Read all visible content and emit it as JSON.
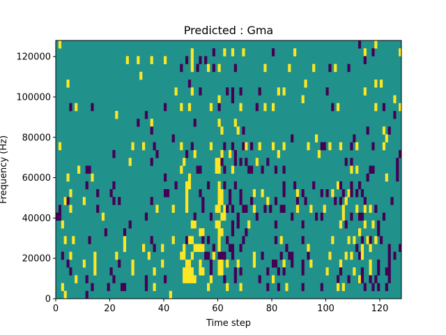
{
  "chart_data": {
    "type": "heatmap",
    "title": "Predicted : Gma",
    "xlabel": "Time step",
    "ylabel": "Frequency (Hz)",
    "xlim": [
      0,
      128
    ],
    "ylim": [
      0,
      128000
    ],
    "xticks": [
      "0",
      "20",
      "40",
      "60",
      "80",
      "100",
      "120"
    ],
    "yticks": [
      "0",
      "20000",
      "40000",
      "60000",
      "80000",
      "100000",
      "120000"
    ],
    "colormap": {
      "p": "#440154",
      ".": "#21918c",
      "y": "#fde725"
    },
    "legend_codes": {
      "p": "low",
      ".": "mid",
      "y": "high"
    },
    "rows_top_to_bottom": [
      ".y..............................................................................................................p.....y.........",
      "..................................................y.......p...y..y...y..........p.......y.........................y..p.........y",
      "..........................y...y....y....y.......p.y..p.p..........................................................p.............",
      "..............................................p...y.p...y.p.y.....p..........y........y........y.....p.y....p..................",
      "...............................y................................................................................................",
      "....y............................................p..........................................y.........................y.y......",
      "............................................y.....y..p.........p.p..p......p......y.y...............p.............y.............",
      "............................................................y....p.........................y.................................y.",
      ".....p.y.....p..........................p.....y..y.......y..p.......y.....p..y..y.....................p.y.............y..p.....y",
      "......................y..........p...........................................................................................p..",
      "..............................p....y...............p........y.....y.............................................................",
      "...................................p.........................y.....y.p.............................................p.....y.p....",
      "...........................................p...........................................p........y.............p...........y.....",
      ".y..........................y...y...p.........y...p......y....p..p...py.p..y....y...y........y....pp.y...y...p.y.....p...y....",
      ".....................p...............p..........p..y.........y..y.p...............y..............y.............................p",
      "...........................y.......p...........y...........yyp....p.p.p...y...p............................p.p................p",
      "........y..pp.................................y.....pp.....yy.p..y.....pp...p....p..p........................y.y....pp........p",
      "....y........y..........................p........y.................................................................p......y...p",
      "...........p.........p......................p...yy......p...y.p...p.................p...p......p........yp...p..p................",
      ".....y.........p....p...................pp......y....p......yy..p...p....y..y.......p....y.p......p.p.y...p.yp.p.p..............",
      "...yp.....y..........p.p...........p............y.....p.....yy..p...p...p.....y..p.......p..p..........p.p.y......p.........p....",
      ".p...y.........p.....................y.....y....y.....p....yy.yp.p...pp..y...p.p...pp....y....y....y......y....y..y.y.p........",
      "pp...............y...............p.................p.....p...yy....p......p............p........p.p.......y..p..pp.......p......",
      "..y........................p......................yy.......yy....p.p...y.........p.........p.............y.p......y..y.p.........",
      "..................p......p...........................yy.....yy...p....p.........................................y......p.........",
      "...y..y.....p............y.........p.......y....pyy...p.p...y..p.....p...........p.y.......p..........y.....y.y..p.yp.y.p.......",
      ".........................y......y...p..y.......y...yyyy...p.y...pp..p................p.......y.................p.y..y......p...p",
      "..p..y........y.......y...........y...........yy..y....pp.y.ppp..p.......y..p......p..pp.....p.......y.....y.y..py.........p.p...",
      "....p.....y...y........p....y..........y........yy...y...p..yy.y...y.....y......pp..y..p...p..y..........y..........y..p...p...",
      ".....p........y.....p.......y.......y..........yyyy..yy..p..yy....p.p.........p...p.p......p........y....p....y..p..y..p..pp....",
      ".......y...p.........p...........p......p......yyyyy.....y....p...p........p....y.......................p...p...yp..p.p....p.....",
      "..y..........p.....p....pp.......p..y...................y......y....y.........p...p..y.....p......p.....y.y.......p..p.p..p.....",
      "...y.......p..............................y..................................................................................."
    ]
  }
}
